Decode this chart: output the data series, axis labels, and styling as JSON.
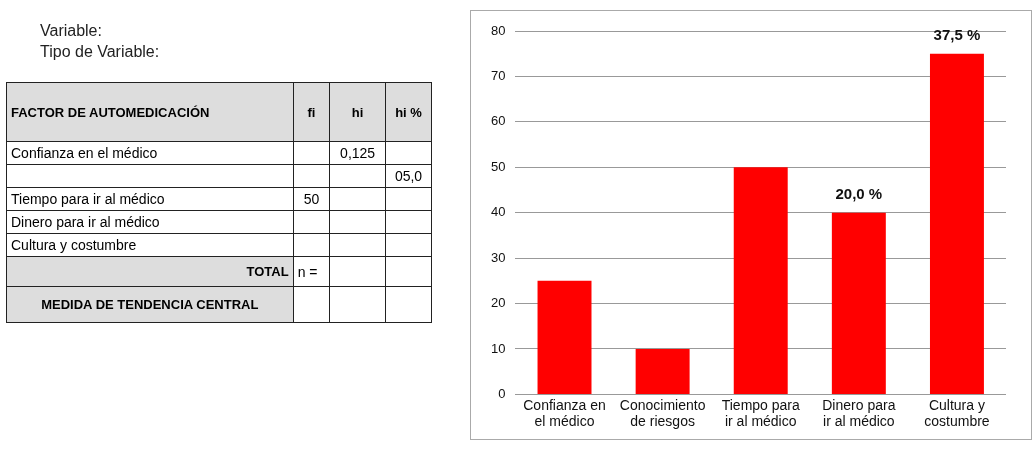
{
  "chart_data": [
    {
      "type": "other",
      "title": "Variable:",
      "subtitle": "Tipo de Variable:",
      "categories": [
        "FACTOR DE AUTOMEDICACIÓN",
        "fi",
        "hi",
        "hi %"
      ],
      "y_categories": [
        "Confianza en el médico",
        null,
        "Tiempo para ir al médico",
        "Dinero para ir al médico",
        "Cultura y costumbre",
        "TOTAL",
        "MEDIDA DE TENDENCIA CENTRAL"
      ],
      "cell_labels": [
        [
          null,
          "0,125",
          null
        ],
        [
          null,
          null,
          "05,0"
        ],
        [
          "50",
          null,
          null
        ],
        [
          null,
          null,
          null
        ],
        [
          null,
          null,
          null
        ],
        [
          "n =",
          null,
          null
        ],
        [
          null,
          null,
          null
        ]
      ]
    },
    {
      "type": "bar",
      "categories": [
        "Confianza en el médico",
        "Conocimiento de riesgos",
        "Tiempo para ir al médico",
        "Dinero para ir al médico",
        "Cultura y costumbre"
      ],
      "values": [
        25,
        10,
        50,
        40,
        75
      ],
      "annotations": [
        {
          "text": "20,0 %",
          "x": "Dinero para ir al médico",
          "y": 40
        },
        {
          "text": "37,5 %",
          "x": "Cultura y costumbre",
          "y": 75
        }
      ],
      "color": "#ff0000",
      "ylim": [
        0,
        80
      ],
      "yticks": [
        0,
        10,
        20,
        30,
        40,
        50,
        60,
        70,
        80
      ],
      "grid": "y",
      "legend": false
    }
  ]
}
